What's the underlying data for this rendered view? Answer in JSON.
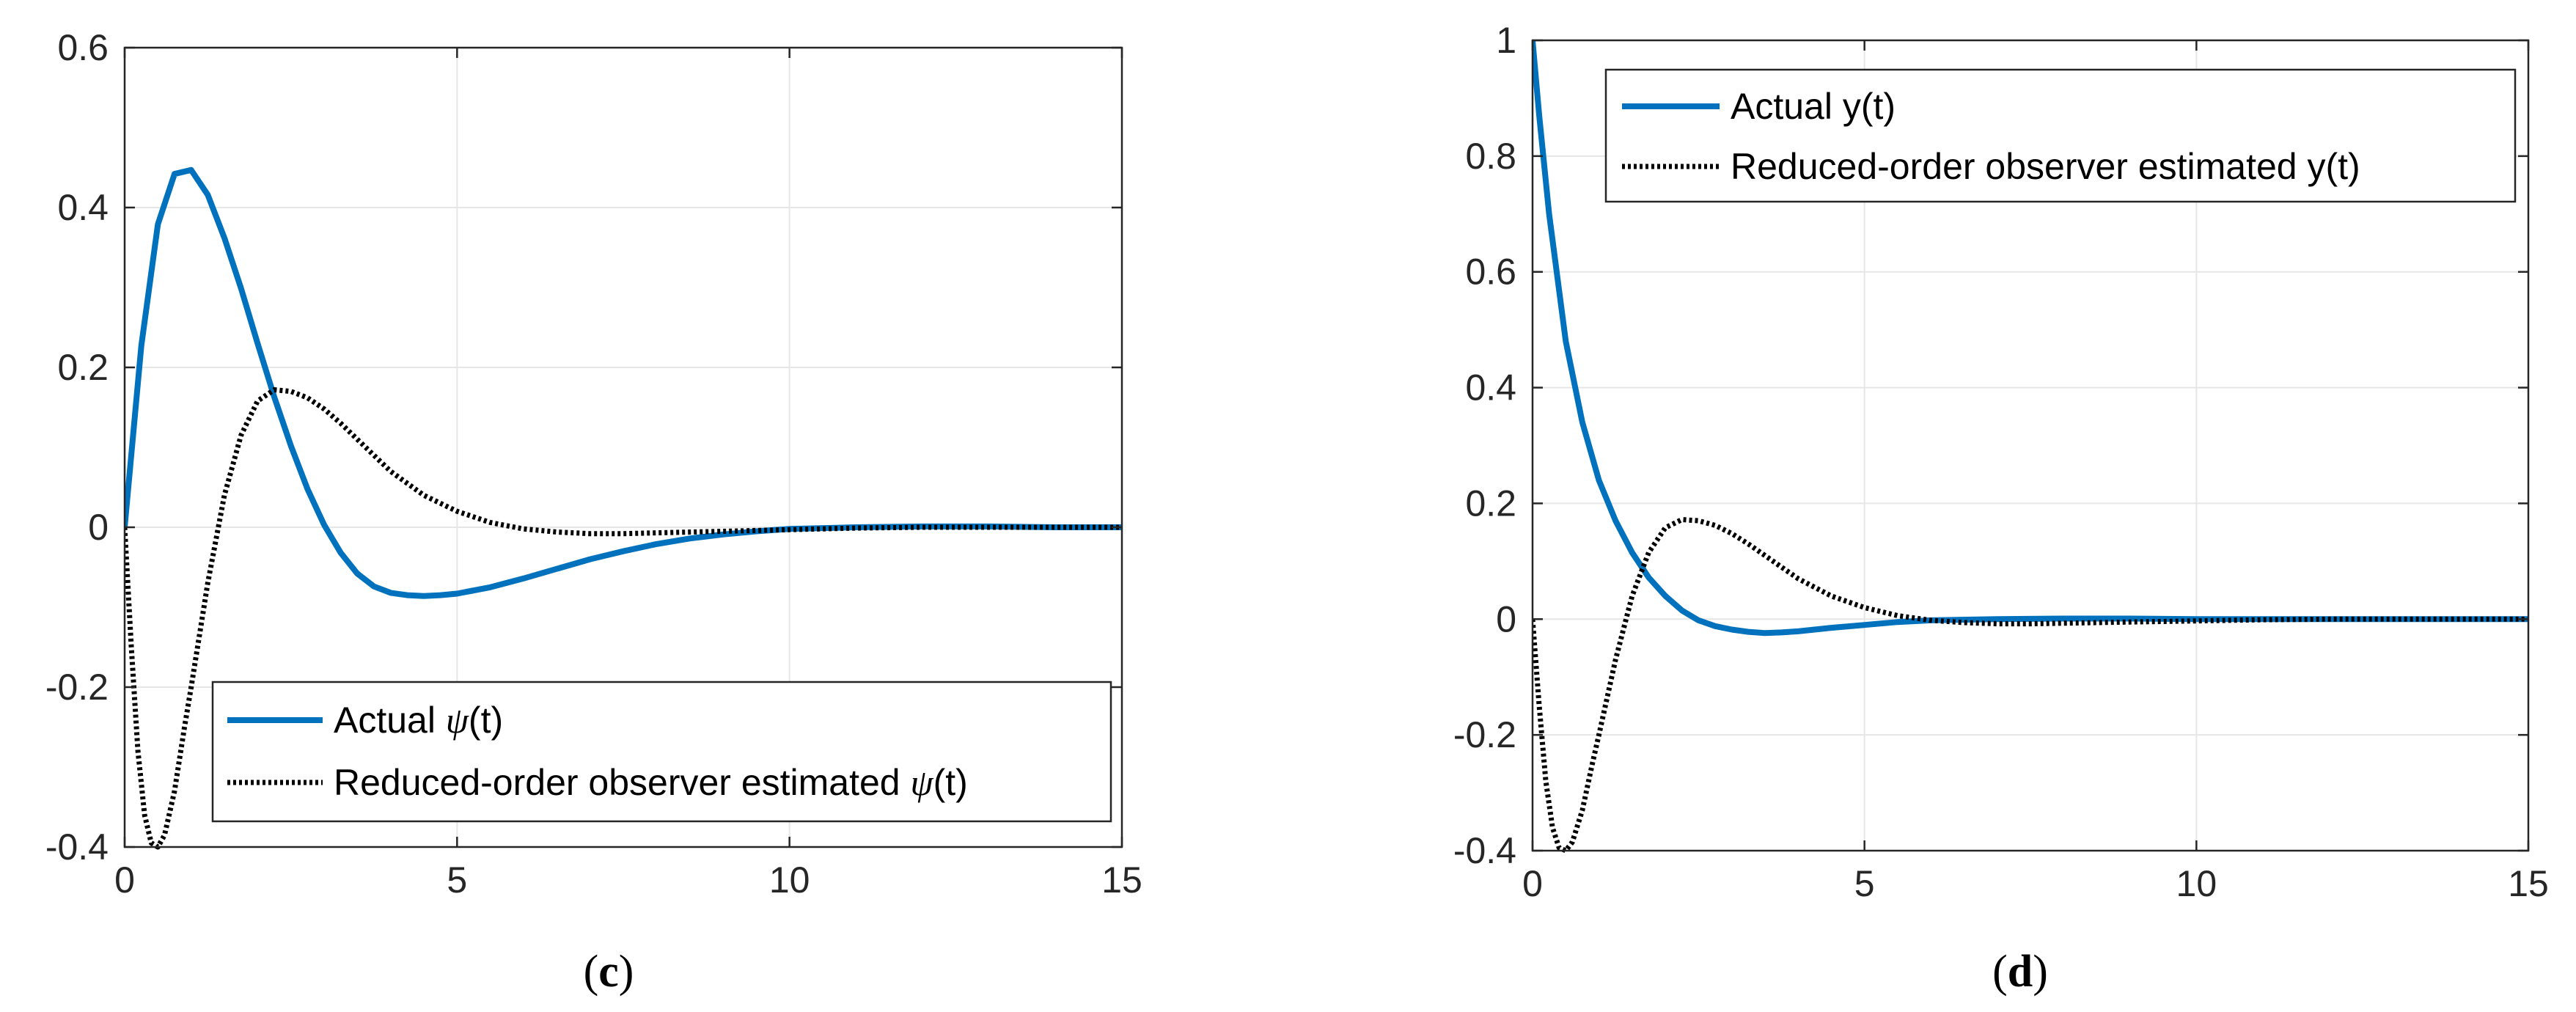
{
  "figure": {
    "background": "#ffffff",
    "text_color": "#262626"
  },
  "chart_data": [
    {
      "type": "line",
      "id": "c",
      "caption": "c",
      "xlim": [
        0,
        15
      ],
      "ylim": [
        -0.4,
        0.6
      ],
      "xticks": [
        0,
        5,
        10,
        15
      ],
      "xtick_labels": [
        "0",
        "5",
        "10",
        "15"
      ],
      "yticks": [
        -0.4,
        -0.2,
        0,
        0.2,
        0.4,
        0.6
      ],
      "ytick_labels": [
        "-0.4",
        "-0.2",
        "0",
        "0.2",
        "0.4",
        "0.6"
      ],
      "grid": true,
      "legend_position": "bottom-right",
      "legend": [
        {
          "series": 0,
          "prefix": "Actual ",
          "symbol": "ψ",
          "suffix": "(t)"
        },
        {
          "series": 1,
          "prefix": "Reduced-order observer estimated ",
          "symbol": "ψ",
          "suffix": "(t)"
        }
      ],
      "series": [
        {
          "name": "Actual ψ(t)",
          "color": "#0072bd",
          "style": "solid",
          "x": [
            0,
            0.25,
            0.5,
            0.75,
            1.0,
            1.25,
            1.5,
            1.75,
            2.0,
            2.25,
            2.5,
            2.75,
            3.0,
            3.25,
            3.5,
            3.75,
            4.0,
            4.25,
            4.5,
            4.75,
            5.0,
            5.5,
            6.0,
            6.5,
            7.0,
            7.5,
            8.0,
            8.5,
            9.0,
            9.5,
            10.0,
            11.0,
            12.0,
            13.0,
            14.0,
            15.0
          ],
          "y": [
            0,
            0.227,
            0.379,
            0.442,
            0.447,
            0.416,
            0.362,
            0.299,
            0.23,
            0.163,
            0.102,
            0.048,
            0.003,
            -0.032,
            -0.058,
            -0.074,
            -0.082,
            -0.085,
            -0.086,
            -0.085,
            -0.083,
            -0.075,
            -0.064,
            -0.052,
            -0.04,
            -0.03,
            -0.021,
            -0.014,
            -0.009,
            -0.005,
            -0.002,
            0.0,
            0.001,
            0.001,
            0.0,
            0.0
          ]
        },
        {
          "name": "Reduced-order observer estimated ψ(t)",
          "color": "#000000",
          "style": "dotted",
          "x": [
            0,
            0.1,
            0.2,
            0.3,
            0.4,
            0.5,
            0.6,
            0.75,
            0.9,
            1.0,
            1.25,
            1.5,
            1.75,
            2.0,
            2.25,
            2.5,
            2.75,
            3.0,
            3.25,
            3.5,
            3.75,
            4.0,
            4.5,
            5.0,
            5.5,
            6.0,
            6.5,
            7.0,
            7.5,
            8.0,
            9.0,
            10.0,
            11.0,
            12.0,
            13.0,
            14.0,
            15.0
          ],
          "y": [
            0,
            -0.15,
            -0.28,
            -0.36,
            -0.395,
            -0.4,
            -0.385,
            -0.33,
            -0.25,
            -0.2,
            -0.07,
            0.04,
            0.115,
            0.158,
            0.172,
            0.17,
            0.162,
            0.148,
            0.13,
            0.11,
            0.09,
            0.07,
            0.04,
            0.02,
            0.006,
            -0.002,
            -0.006,
            -0.008,
            -0.008,
            -0.007,
            -0.005,
            -0.003,
            -0.001,
            0.0,
            0.0,
            0.0,
            0.0
          ]
        }
      ]
    },
    {
      "type": "line",
      "id": "d",
      "caption": "d",
      "xlim": [
        0,
        15
      ],
      "ylim": [
        -0.4,
        1.0
      ],
      "xticks": [
        0,
        5,
        10,
        15
      ],
      "xtick_labels": [
        "0",
        "5",
        "10",
        "15"
      ],
      "yticks": [
        -0.4,
        -0.2,
        0,
        0.2,
        0.4,
        0.6,
        0.8,
        1.0
      ],
      "ytick_labels": [
        "-0.4",
        "-0.2",
        "0",
        "0.2",
        "0.4",
        "0.6",
        "0.8",
        "1"
      ],
      "grid": true,
      "legend_position": "top-right",
      "legend": [
        {
          "series": 0,
          "prefix": "Actual y(t)",
          "symbol": "",
          "suffix": ""
        },
        {
          "series": 1,
          "prefix": "Reduced-order observer estimated y(t)",
          "symbol": "",
          "suffix": ""
        }
      ],
      "series": [
        {
          "name": "Actual y(t)",
          "color": "#0072bd",
          "style": "solid",
          "x": [
            0,
            0.1,
            0.25,
            0.5,
            0.75,
            1.0,
            1.25,
            1.5,
            1.75,
            2.0,
            2.25,
            2.5,
            2.75,
            3.0,
            3.25,
            3.5,
            3.75,
            4.0,
            4.5,
            5.0,
            5.5,
            6.0,
            7.0,
            8.0,
            9.0,
            10.0,
            12.0,
            15.0
          ],
          "y": [
            1.0,
            0.87,
            0.7,
            0.48,
            0.34,
            0.24,
            0.17,
            0.115,
            0.072,
            0.04,
            0.015,
            -0.002,
            -0.012,
            -0.018,
            -0.022,
            -0.024,
            -0.023,
            -0.021,
            -0.015,
            -0.01,
            -0.005,
            -0.002,
            0.0,
            0.001,
            0.001,
            0.0,
            0.0,
            0.0
          ]
        },
        {
          "name": "Reduced-order observer estimated y(t)",
          "color": "#000000",
          "style": "dotted",
          "x": [
            0,
            0.1,
            0.2,
            0.3,
            0.4,
            0.5,
            0.6,
            0.75,
            0.9,
            1.0,
            1.25,
            1.5,
            1.75,
            2.0,
            2.25,
            2.5,
            2.75,
            3.0,
            3.25,
            3.5,
            3.75,
            4.0,
            4.5,
            5.0,
            5.5,
            6.0,
            6.5,
            7.0,
            7.5,
            8.0,
            9.0,
            10.0,
            11.0,
            12.0,
            13.0,
            14.0,
            15.0
          ],
          "y": [
            0,
            -0.15,
            -0.28,
            -0.36,
            -0.395,
            -0.4,
            -0.385,
            -0.33,
            -0.25,
            -0.2,
            -0.07,
            0.04,
            0.115,
            0.158,
            0.172,
            0.17,
            0.162,
            0.148,
            0.13,
            0.11,
            0.09,
            0.07,
            0.04,
            0.02,
            0.006,
            -0.002,
            -0.006,
            -0.008,
            -0.008,
            -0.007,
            -0.005,
            -0.003,
            -0.001,
            0.0,
            0.0,
            0.0,
            0.0
          ]
        }
      ]
    }
  ]
}
